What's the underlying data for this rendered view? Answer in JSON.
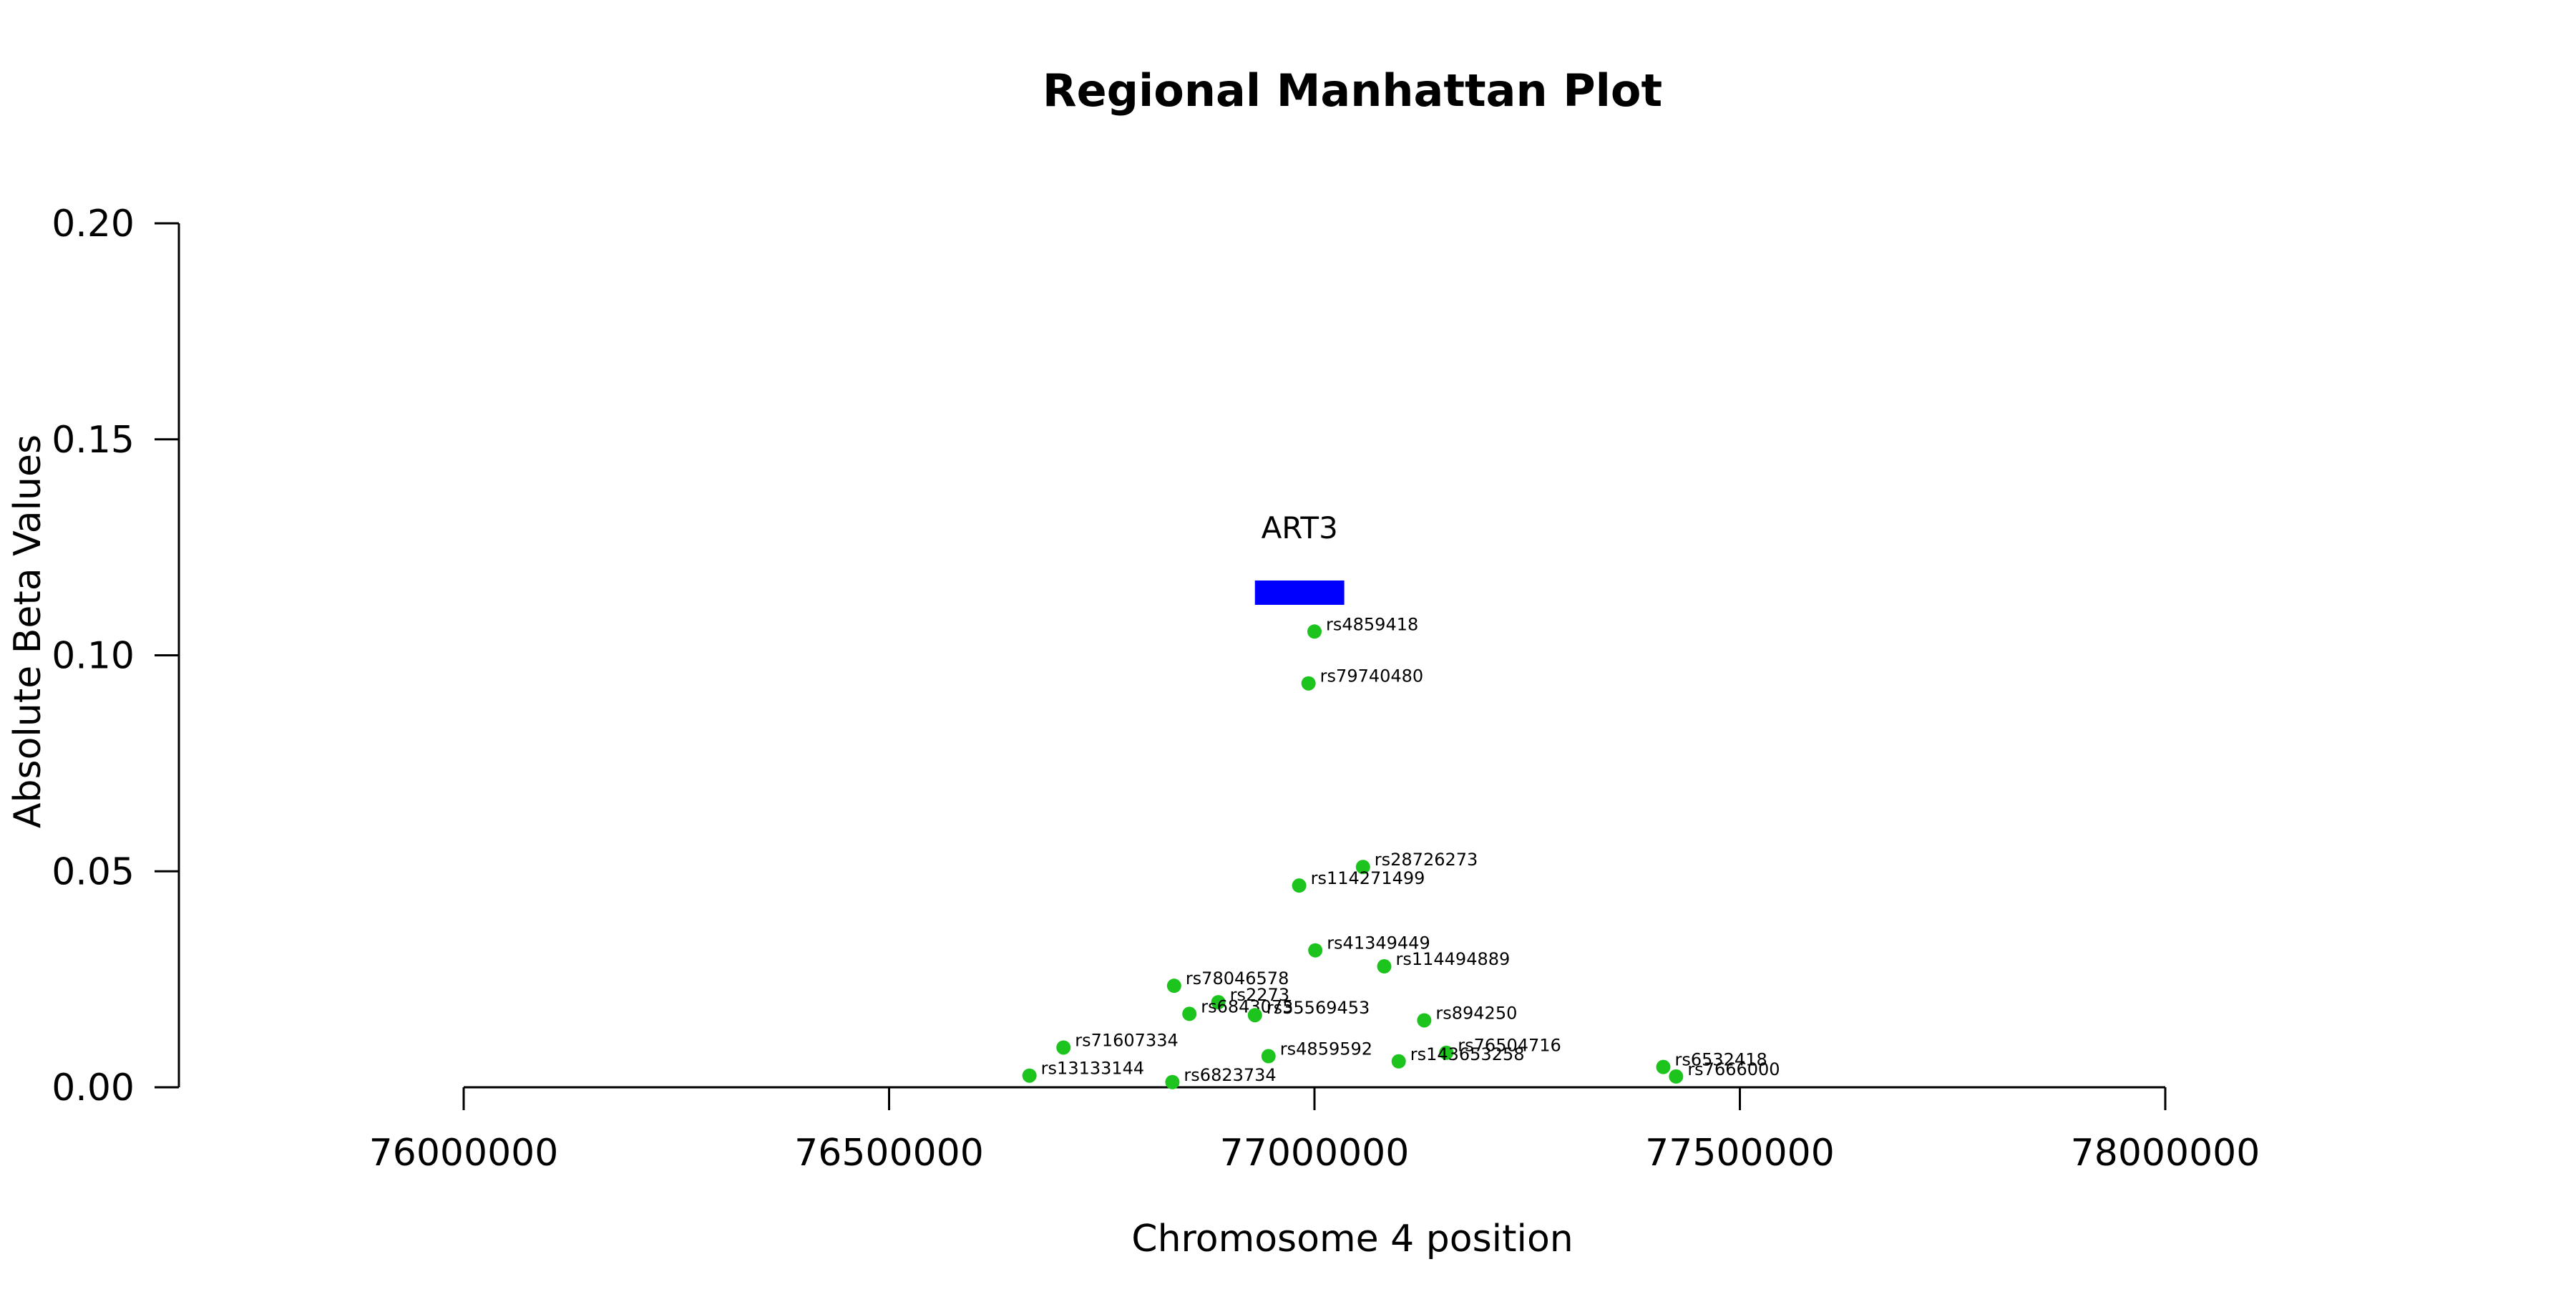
{
  "chart_data": {
    "type": "scatter",
    "title": "Regional Manhattan Plot",
    "xlabel": "Chromosome 4 position",
    "ylabel": "Absolute Beta Values",
    "xlim": [
      76000000,
      78000000
    ],
    "ylim": [
      0,
      0.2
    ],
    "x_ticks": [
      76000000,
      76500000,
      77000000,
      77500000,
      78000000
    ],
    "x_tick_labels": [
      "76000000",
      "76500000",
      "77000000",
      "77500000",
      "78000000"
    ],
    "y_ticks": [
      0,
      0.05,
      0.1,
      0.15,
      0.2
    ],
    "y_tick_labels": [
      "0.00",
      "0.05",
      "0.10",
      "0.15",
      "0.20"
    ],
    "grid": false,
    "point_color": "#1ec41e",
    "gene": {
      "name": "ART3",
      "start": 76930000,
      "end": 77035000,
      "y": 0.1145,
      "color": "#0000ff"
    },
    "points": [
      {
        "label": "rs4859418",
        "x": 77000000,
        "y": 0.1055
      },
      {
        "label": "rs79740480",
        "x": 76993000,
        "y": 0.0935
      },
      {
        "label": "rs28726273",
        "x": 77057000,
        "y": 0.051
      },
      {
        "label": "rs114271499",
        "x": 76982000,
        "y": 0.0467
      },
      {
        "label": "rs41349449",
        "x": 77001000,
        "y": 0.0317
      },
      {
        "label": "rs114494889",
        "x": 77082000,
        "y": 0.028
      },
      {
        "label": "rs78046578",
        "x": 76835000,
        "y": 0.0235
      },
      {
        "label": "rs2273",
        "x": 76887000,
        "y": 0.0197
      },
      {
        "label": "rs6843075",
        "x": 76853000,
        "y": 0.017
      },
      {
        "label": "rs35569453",
        "x": 76930000,
        "y": 0.0167
      },
      {
        "label": "rs894250",
        "x": 77129000,
        "y": 0.0155
      },
      {
        "label": "rs71607334",
        "x": 76705000,
        "y": 0.0092
      },
      {
        "label": "rs76504716",
        "x": 77155000,
        "y": 0.008
      },
      {
        "label": "rs4859592",
        "x": 76946000,
        "y": 0.0072
      },
      {
        "label": "rs143653258",
        "x": 77099000,
        "y": 0.006
      },
      {
        "label": "rs6532418",
        "x": 77410000,
        "y": 0.0047
      },
      {
        "label": "rs7666000",
        "x": 77425000,
        "y": 0.0025
      },
      {
        "label": "rs13133144",
        "x": 76665000,
        "y": 0.0027
      },
      {
        "label": "rs6823734",
        "x": 76833000,
        "y": 0.0012
      }
    ]
  }
}
